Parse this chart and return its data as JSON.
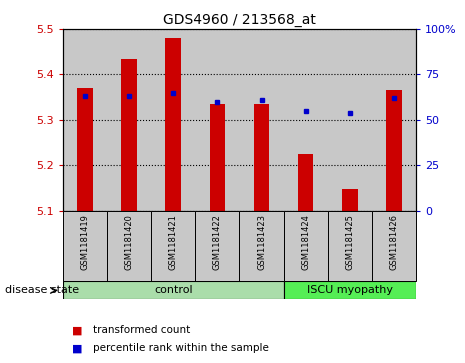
{
  "title": "GDS4960 / 213568_at",
  "samples": [
    "GSM1181419",
    "GSM1181420",
    "GSM1181421",
    "GSM1181422",
    "GSM1181423",
    "GSM1181424",
    "GSM1181425",
    "GSM1181426"
  ],
  "transformed_counts": [
    5.37,
    5.435,
    5.48,
    5.335,
    5.335,
    5.225,
    5.148,
    5.365
  ],
  "percentile_ranks": [
    63,
    63,
    65,
    60,
    61,
    55,
    54,
    62
  ],
  "ylim_left": [
    5.1,
    5.5
  ],
  "ylim_right": [
    0,
    100
  ],
  "yticks_left": [
    5.1,
    5.2,
    5.3,
    5.4,
    5.5
  ],
  "yticks_right": [
    0,
    25,
    50,
    75,
    100
  ],
  "bar_color": "#cc0000",
  "point_color": "#0000cc",
  "bar_base": 5.1,
  "control_group": [
    0,
    1,
    2,
    3,
    4
  ],
  "disease_group": [
    5,
    6,
    7
  ],
  "control_label": "control",
  "disease_label": "ISCU myopathy",
  "control_color": "#aaddaa",
  "disease_color": "#55ee55",
  "label_color_left": "#cc0000",
  "label_color_right": "#0000cc",
  "legend_bar_label": "transformed count",
  "legend_point_label": "percentile rank within the sample",
  "disease_state_label": "disease state",
  "cell_bg": "#c8c8c8",
  "plot_bg": "#ffffff",
  "bar_width": 0.35
}
